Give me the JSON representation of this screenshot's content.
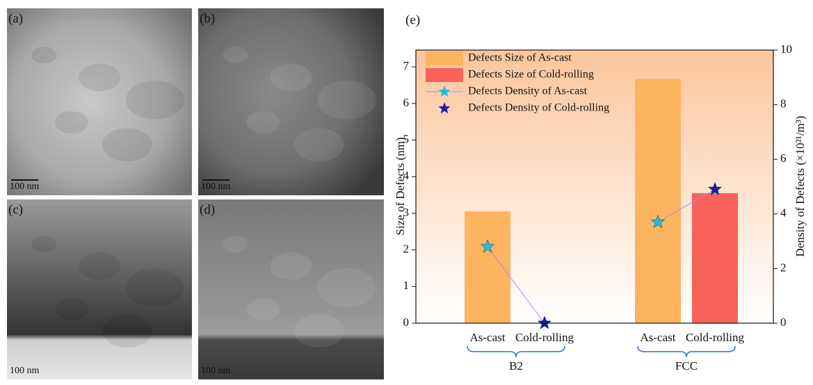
{
  "micrographs": [
    {
      "label": "(a)",
      "scale_bar": "100 nm"
    },
    {
      "label": "(b)",
      "scale_bar": "100 nm"
    },
    {
      "label": "(c)",
      "scale_bar": "100 nm"
    },
    {
      "label": "(d)",
      "scale_bar": "100 nm"
    }
  ],
  "chart_data": {
    "type": "bar",
    "panel_label": "(e)",
    "categories": [
      "B2",
      "FCC"
    ],
    "subcategories": [
      "As-cast",
      "Cold-rolling"
    ],
    "y_label": "Size of Defects (nm)",
    "y2_label": "Density of Defects (×10²¹/m³)",
    "ylim": [
      0,
      7.46
    ],
    "yticks": [
      0,
      1,
      2,
      3,
      4,
      5,
      6,
      7
    ],
    "y2lim": [
      0,
      10
    ],
    "y2ticks": [
      0,
      2,
      4,
      6,
      8,
      10
    ],
    "series": [
      {
        "name": "Defects Size of As-cast",
        "type": "bar",
        "color": "#fdb45e",
        "values": [
          3.05,
          6.67
        ]
      },
      {
        "name": "Defects Size of Cold-rolling",
        "type": "bar",
        "color": "#f8625a",
        "values": [
          null,
          3.55
        ]
      },
      {
        "name": "Defects Density of As-cast",
        "type": "star",
        "axis": "y2",
        "color": "#22bfd0",
        "values": [
          2.8,
          3.7
        ]
      },
      {
        "name": "Defects Density of Cold-rolling",
        "type": "star",
        "axis": "y2",
        "color": "#1c1ca6",
        "values": [
          0,
          4.9
        ]
      }
    ],
    "connector_color": "#a58cf0"
  }
}
